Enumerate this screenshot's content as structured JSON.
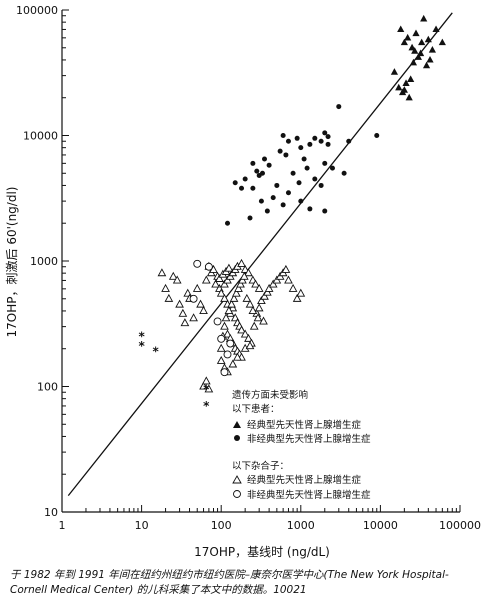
{
  "chart_data": {
    "type": "scatter",
    "xlabel": "17OHP，基线时 (ng/dL)",
    "ylabel": "17OHP，刺激后 60'(ng/dl)",
    "x_scale": "log",
    "y_scale": "log",
    "xlim": [
      1,
      100000
    ],
    "ylim": [
      10,
      100000
    ],
    "x_ticks": [
      "1",
      "10",
      "100",
      "1000",
      "10000",
      "100000"
    ],
    "y_ticks": [
      "10",
      "100",
      "1000",
      "10000",
      "100000"
    ],
    "grid": false,
    "regression_line": {
      "from": [
        1.2,
        13.5
      ],
      "to": [
        80000,
        95000
      ]
    },
    "legend": {
      "title": "遗传方面未受影响",
      "group1_label": "以下患者：",
      "group2_label": "以下杂合子：",
      "entries": [
        {
          "marker": "filled-triangle",
          "label": "经典型先天性肾上腺增生症"
        },
        {
          "marker": "filled-circle",
          "label": "非经典型先天性肾上腺增生症"
        },
        {
          "marker": "open-triangle",
          "label": "经典型先天性肾上腺增生症"
        },
        {
          "marker": "open-circle",
          "label": "非经典型先天性肾上腺增生症"
        }
      ]
    },
    "series": [
      {
        "name": "经典型先天性肾上腺增生症（患者）",
        "marker": "filled-triangle",
        "points": [
          [
            18000,
            70000
          ],
          [
            20000,
            55000
          ],
          [
            22000,
            60000
          ],
          [
            25000,
            50000
          ],
          [
            28000,
            65000
          ],
          [
            32000,
            45000
          ],
          [
            35000,
            85000
          ],
          [
            40000,
            58000
          ],
          [
            45000,
            48000
          ],
          [
            50000,
            70000
          ],
          [
            60000,
            55000
          ],
          [
            42000,
            40000
          ],
          [
            38000,
            36000
          ],
          [
            30000,
            42000
          ],
          [
            26000,
            38000
          ],
          [
            15000,
            32000
          ],
          [
            17000,
            24000
          ],
          [
            19000,
            22000
          ],
          [
            21000,
            26000
          ],
          [
            23000,
            20000
          ],
          [
            24000,
            28000
          ],
          [
            33000,
            55000
          ],
          [
            27000,
            47000
          ],
          [
            20000,
            23000
          ]
        ]
      },
      {
        "name": "非经典型先天性肾上腺增生症（患者）",
        "marker": "filled-circle",
        "points": [
          [
            3000,
            17000
          ],
          [
            600,
            10000
          ],
          [
            700,
            9000
          ],
          [
            900,
            9500
          ],
          [
            1000,
            8000
          ],
          [
            1100,
            6500
          ],
          [
            1300,
            8500
          ],
          [
            1500,
            9500
          ],
          [
            1800,
            9000
          ],
          [
            2000,
            10500
          ],
          [
            2200,
            9800
          ],
          [
            4000,
            9000
          ],
          [
            2500,
            5500
          ],
          [
            1500,
            4500
          ],
          [
            1800,
            4000
          ],
          [
            2000,
            6000
          ],
          [
            1200,
            5500
          ],
          [
            950,
            4200
          ],
          [
            800,
            5000
          ],
          [
            700,
            3500
          ],
          [
            500,
            4000
          ],
          [
            450,
            3200
          ],
          [
            600,
            2800
          ],
          [
            380,
            2500
          ],
          [
            320,
            3000
          ],
          [
            300,
            4800
          ],
          [
            280,
            5200
          ],
          [
            250,
            6000
          ],
          [
            350,
            6500
          ],
          [
            400,
            5800
          ],
          [
            550,
            7500
          ],
          [
            650,
            7000
          ],
          [
            200,
            4500
          ],
          [
            180,
            3800
          ],
          [
            150,
            4200
          ],
          [
            230,
            2200
          ],
          [
            120,
            2000
          ],
          [
            250,
            3800
          ],
          [
            330,
            5000
          ],
          [
            1000,
            3000
          ],
          [
            1300,
            2600
          ],
          [
            2000,
            2500
          ],
          [
            3500,
            5000
          ],
          [
            2200,
            8500
          ],
          [
            9000,
            10000
          ]
        ]
      },
      {
        "name": "经典型先天性肾上腺增生症（杂合子）",
        "marker": "open-triangle",
        "points": [
          [
            18,
            800
          ],
          [
            20,
            600
          ],
          [
            22,
            500
          ],
          [
            25,
            750
          ],
          [
            28,
            700
          ],
          [
            30,
            450
          ],
          [
            33,
            380
          ],
          [
            35,
            320
          ],
          [
            38,
            550
          ],
          [
            40,
            500
          ],
          [
            45,
            350
          ],
          [
            50,
            600
          ],
          [
            55,
            450
          ],
          [
            60,
            400
          ],
          [
            65,
            700
          ],
          [
            70,
            900
          ],
          [
            75,
            800
          ],
          [
            80,
            850
          ],
          [
            90,
            750
          ],
          [
            95,
            600
          ],
          [
            100,
            550
          ],
          [
            110,
            500
          ],
          [
            120,
            450
          ],
          [
            130,
            380
          ],
          [
            140,
            420
          ],
          [
            150,
            350
          ],
          [
            160,
            320
          ],
          [
            170,
            300
          ],
          [
            180,
            280
          ],
          [
            200,
            260
          ],
          [
            220,
            240
          ],
          [
            240,
            220
          ],
          [
            260,
            300
          ],
          [
            280,
            380
          ],
          [
            300,
            420
          ],
          [
            320,
            480
          ],
          [
            350,
            520
          ],
          [
            380,
            560
          ],
          [
            400,
            600
          ],
          [
            450,
            650
          ],
          [
            500,
            700
          ],
          [
            550,
            750
          ],
          [
            600,
            800
          ],
          [
            650,
            850
          ],
          [
            700,
            700
          ],
          [
            800,
            600
          ],
          [
            900,
            500
          ],
          [
            1000,
            550
          ],
          [
            110,
            650
          ],
          [
            120,
            700
          ],
          [
            130,
            750
          ],
          [
            140,
            800
          ],
          [
            150,
            850
          ],
          [
            160,
            900
          ],
          [
            180,
            950
          ],
          [
            200,
            850
          ],
          [
            220,
            800
          ],
          [
            250,
            700
          ],
          [
            270,
            650
          ],
          [
            300,
            600
          ],
          [
            110,
            300
          ],
          [
            120,
            260
          ],
          [
            130,
            240
          ],
          [
            140,
            220
          ],
          [
            150,
            200
          ],
          [
            160,
            190
          ],
          [
            170,
            180
          ],
          [
            180,
            170
          ],
          [
            100,
            200
          ],
          [
            105,
            250
          ],
          [
            115,
            350
          ],
          [
            125,
            400
          ],
          [
            135,
            450
          ],
          [
            145,
            500
          ],
          [
            155,
            550
          ],
          [
            165,
            600
          ],
          [
            175,
            650
          ],
          [
            185,
            700
          ],
          [
            195,
            750
          ],
          [
            210,
            500
          ],
          [
            230,
            450
          ],
          [
            250,
            400
          ],
          [
            290,
            350
          ],
          [
            340,
            330
          ],
          [
            60,
            100
          ],
          [
            65,
            110
          ],
          [
            70,
            95
          ],
          [
            100,
            160
          ],
          [
            110,
            140
          ],
          [
            120,
            130
          ],
          [
            140,
            150
          ],
          [
            160,
            170
          ],
          [
            200,
            200
          ],
          [
            230,
            210
          ],
          [
            85,
            650
          ],
          [
            95,
            720
          ],
          [
            105,
            780
          ],
          [
            115,
            820
          ],
          [
            125,
            870
          ]
        ]
      },
      {
        "name": "非经典型先天性肾上腺增生症（杂合子）",
        "marker": "open-circle",
        "points": [
          [
            50,
            950
          ],
          [
            70,
            900
          ],
          [
            45,
            500
          ],
          [
            90,
            330
          ],
          [
            100,
            240
          ],
          [
            110,
            130
          ],
          [
            120,
            180
          ],
          [
            130,
            220
          ]
        ]
      },
      {
        "name": "",
        "marker": "asterisk",
        "points": [
          [
            10,
            250
          ],
          [
            10,
            210
          ],
          [
            15,
            190
          ],
          [
            65,
            95
          ],
          [
            65,
            70
          ]
        ]
      }
    ]
  },
  "caption": "于 1982 年到 1991 年间在纽约州纽约市纽约医院–康奈尔医学中心(The New York Hospital-Cornell Medical Center) 的儿科采集了本文中的数据。10021"
}
